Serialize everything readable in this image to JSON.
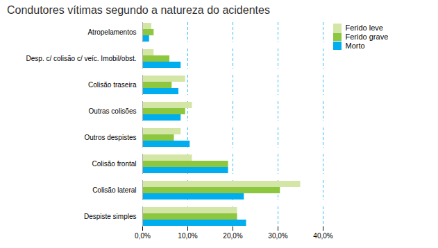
{
  "chart_data": {
    "type": "bar",
    "orientation": "horizontal",
    "title": "Condutores vítimas segundo a natureza do acidentes",
    "categories": [
      "Despiste simples",
      "Colisão lateral",
      "Colisão frontal",
      "Outros despistes",
      "Outras colisões",
      "Colisão traseira",
      "Desp. c/ colisão c/ veíc. Imobil/obst.",
      "Atropelamentos"
    ],
    "series": [
      {
        "name": "Ferido leve",
        "color": "#d4e6a5",
        "values": [
          21.0,
          35.0,
          11.0,
          8.5,
          11.0,
          9.5,
          2.5,
          2.0
        ]
      },
      {
        "name": "Ferido grave",
        "color": "#8dc63f",
        "values": [
          21.0,
          30.5,
          19.0,
          7.0,
          9.5,
          6.5,
          6.0,
          2.5
        ]
      },
      {
        "name": "Morto",
        "color": "#00aeef",
        "values": [
          23.0,
          22.5,
          19.0,
          10.5,
          8.5,
          8.0,
          8.5,
          1.5
        ]
      }
    ],
    "xlim": [
      0,
      40
    ],
    "xticks": [
      {
        "value": 0,
        "label": "0,0%"
      },
      {
        "value": 10,
        "label": "10,0%"
      },
      {
        "value": 20,
        "label": "20,0%"
      },
      {
        "value": 30,
        "label": "30,0%"
      },
      {
        "value": 40,
        "label": "40,0%"
      }
    ],
    "grid": true,
    "legend": "right"
  }
}
